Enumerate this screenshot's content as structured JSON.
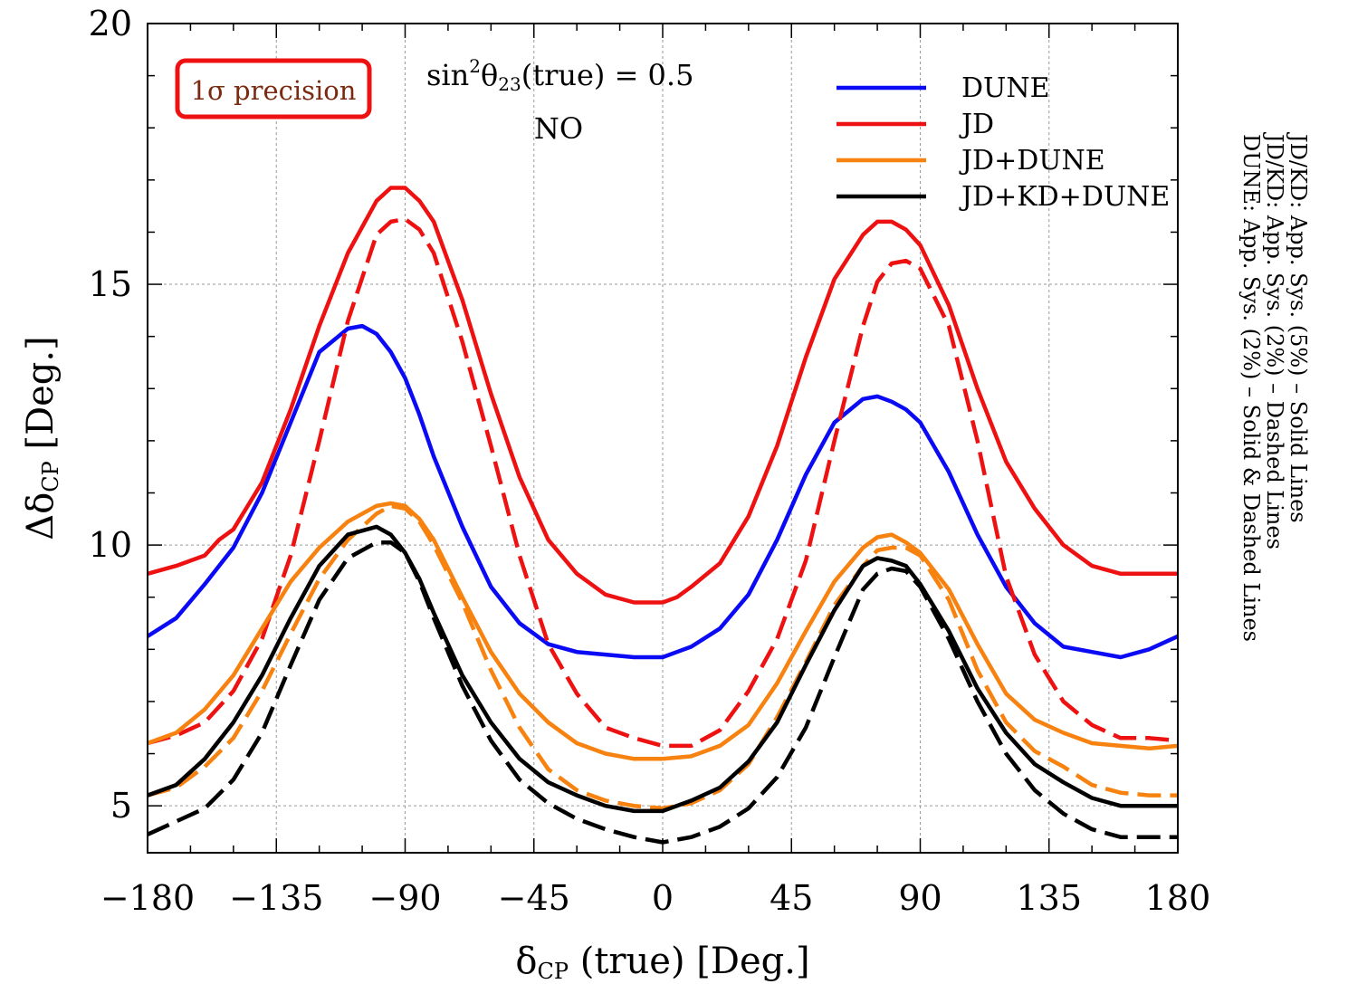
{
  "chart_data": {
    "type": "line",
    "xlabel": "δCP (true) [Deg.]",
    "xlabel_parts": {
      "main": "δ",
      "sub": "CP",
      "rest": " (true) [Deg.]"
    },
    "ylabel": "ΔδCP [Deg.]",
    "ylabel_parts": {
      "main": "Δδ",
      "sub": "CP",
      "rest": " [Deg.]"
    },
    "xlim": [
      -180,
      180
    ],
    "ylim": [
      4.1,
      20
    ],
    "xticks": [
      -180,
      -135,
      -90,
      -45,
      0,
      45,
      90,
      135,
      180
    ],
    "xtick_labels": [
      "−180",
      "−135",
      "−90",
      "−45",
      "0",
      "45",
      "90",
      "135",
      "180"
    ],
    "yticks": [
      5,
      10,
      15,
      20
    ],
    "ytick_labels": [
      "5",
      "10",
      "15",
      "20"
    ],
    "grid": true,
    "legend_position": "top-right",
    "annotations": {
      "box_label": "1σ precision",
      "theta_parts": {
        "pre": "sin",
        "sup": "2",
        "theta": "θ",
        "sub": "23",
        "post": "(true) = 0.5"
      },
      "ordering": "NO"
    },
    "side_notes": [
      "JD/KD: App. Sys. (5%) – Solid Lines",
      "JD/KD: App. Sys. (2%) – Dashed Lines",
      "DUNE: App. Sys. (2%) – Solid & Dashed Lines"
    ],
    "colors": {
      "DUNE": "#0a0af5",
      "JD": "#ee1111",
      "JD+DUNE": "#f7820f",
      "JD+KD+DUNE": "#000000",
      "box": "#ee1111",
      "box_text": "#7a2a10"
    },
    "series": [
      {
        "name": "DUNE",
        "style": "solid",
        "color": "#0a0af5",
        "x": [
          -180,
          -170,
          -160,
          -150,
          -140,
          -130,
          -120,
          -110,
          -105,
          -100,
          -95,
          -90,
          -85,
          -80,
          -70,
          -60,
          -50,
          -40,
          -30,
          -20,
          -10,
          0,
          5,
          10,
          20,
          30,
          40,
          50,
          60,
          70,
          75,
          80,
          85,
          90,
          100,
          110,
          120,
          130,
          140,
          150,
          160,
          170,
          180
        ],
        "y": [
          8.25,
          8.6,
          9.25,
          9.95,
          11,
          12.35,
          13.7,
          14.15,
          14.2,
          14.05,
          13.7,
          13.2,
          12.5,
          11.7,
          10.35,
          9.2,
          8.5,
          8.1,
          7.95,
          7.9,
          7.85,
          7.85,
          7.95,
          8.05,
          8.4,
          9.05,
          10.1,
          11.35,
          12.35,
          12.8,
          12.85,
          12.75,
          12.6,
          12.35,
          11.4,
          10.2,
          9.2,
          8.5,
          8.05,
          7.95,
          7.85,
          8.0,
          8.25
        ]
      },
      {
        "name": "JD",
        "style": "solid",
        "color": "#ee1111",
        "x": [
          -180,
          -170,
          -160,
          -155,
          -150,
          -140,
          -130,
          -120,
          -110,
          -100,
          -95,
          -90,
          -85,
          -80,
          -70,
          -60,
          -50,
          -40,
          -30,
          -20,
          -10,
          0,
          5,
          10,
          20,
          30,
          40,
          50,
          60,
          70,
          75,
          80,
          85,
          90,
          100,
          110,
          120,
          130,
          140,
          150,
          160,
          170,
          180
        ],
        "y": [
          9.45,
          9.6,
          9.8,
          10.1,
          10.3,
          11.2,
          12.6,
          14.2,
          15.6,
          16.6,
          16.85,
          16.85,
          16.6,
          16.2,
          14.7,
          12.9,
          11.3,
          10.1,
          9.45,
          9.05,
          8.9,
          8.9,
          9.0,
          9.2,
          9.65,
          10.55,
          11.9,
          13.6,
          15.1,
          15.95,
          16.2,
          16.2,
          16.05,
          15.75,
          14.6,
          13,
          11.6,
          10.7,
          10.0,
          9.6,
          9.45,
          9.45,
          9.45
        ]
      },
      {
        "name": "JD",
        "style": "dashed",
        "color": "#ee1111",
        "x": [
          -180,
          -170,
          -160,
          -150,
          -140,
          -130,
          -120,
          -110,
          -100,
          -95,
          -90,
          -85,
          -80,
          -70,
          -60,
          -50,
          -40,
          -30,
          -20,
          -10,
          0,
          10,
          20,
          30,
          40,
          50,
          60,
          70,
          75,
          80,
          85,
          90,
          100,
          110,
          120,
          130,
          140,
          150,
          160,
          170,
          180
        ],
        "y": [
          6.2,
          6.35,
          6.6,
          7.2,
          8.2,
          9.8,
          12.0,
          14.3,
          15.95,
          16.2,
          16.25,
          16.05,
          15.6,
          13.9,
          11.9,
          9.8,
          8.1,
          7.15,
          6.5,
          6.3,
          6.15,
          6.15,
          6.45,
          7.2,
          8.2,
          9.7,
          12,
          14.2,
          15.05,
          15.4,
          15.45,
          15.3,
          14.2,
          12.0,
          9.4,
          7.9,
          7.0,
          6.55,
          6.3,
          6.3,
          6.25
        ]
      },
      {
        "name": "JD+DUNE",
        "style": "solid",
        "color": "#f7820f",
        "x": [
          -180,
          -170,
          -160,
          -150,
          -140,
          -130,
          -120,
          -110,
          -100,
          -95,
          -90,
          -85,
          -80,
          -70,
          -60,
          -50,
          -40,
          -30,
          -20,
          -10,
          0,
          10,
          20,
          30,
          40,
          50,
          60,
          70,
          75,
          80,
          85,
          90,
          100,
          110,
          120,
          130,
          140,
          150,
          160,
          170,
          180
        ],
        "y": [
          6.2,
          6.4,
          6.85,
          7.5,
          8.4,
          9.3,
          9.95,
          10.45,
          10.75,
          10.8,
          10.75,
          10.5,
          10.1,
          9.0,
          7.95,
          7.15,
          6.6,
          6.2,
          6.0,
          5.9,
          5.9,
          5.95,
          6.15,
          6.55,
          7.35,
          8.35,
          9.3,
          9.95,
          10.15,
          10.2,
          10.05,
          9.85,
          9.15,
          8.1,
          7.15,
          6.65,
          6.4,
          6.2,
          6.15,
          6.1,
          6.15
        ]
      },
      {
        "name": "JD+DUNE",
        "style": "dashed",
        "color": "#f7820f",
        "x": [
          -180,
          -170,
          -160,
          -150,
          -140,
          -130,
          -120,
          -110,
          -100,
          -95,
          -90,
          -85,
          -80,
          -70,
          -60,
          -50,
          -40,
          -30,
          -20,
          -10,
          0,
          10,
          20,
          30,
          40,
          50,
          60,
          70,
          75,
          80,
          85,
          90,
          100,
          110,
          120,
          130,
          140,
          150,
          160,
          170,
          180
        ],
        "y": [
          5.2,
          5.35,
          5.75,
          6.3,
          7.2,
          8.3,
          9.35,
          10.1,
          10.6,
          10.75,
          10.7,
          10.45,
          10.0,
          8.9,
          7.6,
          6.5,
          5.7,
          5.3,
          5.1,
          5.0,
          4.95,
          5.05,
          5.3,
          5.8,
          6.7,
          7.75,
          8.85,
          9.6,
          9.9,
          9.95,
          9.95,
          9.8,
          8.95,
          7.6,
          6.6,
          6.05,
          5.75,
          5.4,
          5.25,
          5.2,
          5.2
        ]
      },
      {
        "name": "JD+KD+DUNE",
        "style": "solid",
        "color": "#000000",
        "x": [
          -180,
          -170,
          -160,
          -150,
          -140,
          -130,
          -120,
          -110,
          -100,
          -95,
          -90,
          -85,
          -80,
          -70,
          -60,
          -50,
          -40,
          -30,
          -20,
          -10,
          0,
          10,
          20,
          30,
          40,
          50,
          60,
          70,
          75,
          80,
          85,
          90,
          100,
          110,
          120,
          130,
          140,
          150,
          160,
          170,
          180
        ],
        "y": [
          5.2,
          5.4,
          5.9,
          6.6,
          7.5,
          8.6,
          9.6,
          10.2,
          10.35,
          10.2,
          9.85,
          9.35,
          8.7,
          7.5,
          6.6,
          5.9,
          5.45,
          5.2,
          5.0,
          4.9,
          4.9,
          5.1,
          5.35,
          5.85,
          6.6,
          7.7,
          8.75,
          9.6,
          9.75,
          9.7,
          9.6,
          9.25,
          8.35,
          7.25,
          6.4,
          5.8,
          5.45,
          5.15,
          5.0,
          5.0,
          5.0
        ]
      },
      {
        "name": "JD+KD+DUNE",
        "style": "dashed",
        "color": "#000000",
        "x": [
          -180,
          -170,
          -160,
          -150,
          -140,
          -130,
          -120,
          -110,
          -100,
          -95,
          -90,
          -85,
          -80,
          -70,
          -60,
          -50,
          -40,
          -30,
          -20,
          -10,
          0,
          10,
          20,
          30,
          40,
          50,
          60,
          70,
          75,
          80,
          85,
          90,
          100,
          110,
          120,
          130,
          140,
          150,
          160,
          170,
          180
        ],
        "y": [
          4.45,
          4.7,
          4.95,
          5.5,
          6.4,
          7.7,
          8.95,
          9.75,
          10.05,
          10.05,
          9.85,
          9.3,
          8.6,
          7.3,
          6.25,
          5.5,
          5.05,
          4.75,
          4.55,
          4.4,
          4.3,
          4.4,
          4.6,
          4.95,
          5.55,
          6.5,
          7.85,
          9.15,
          9.45,
          9.55,
          9.5,
          9.2,
          8.2,
          7.0,
          6.0,
          5.3,
          4.85,
          4.55,
          4.4,
          4.4,
          4.4
        ]
      }
    ],
    "legend_order": [
      "DUNE",
      "JD",
      "JD+DUNE",
      "JD+KD+DUNE"
    ]
  }
}
